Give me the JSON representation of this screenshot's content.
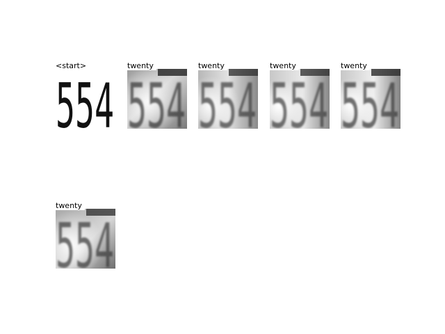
{
  "figure": {
    "panels": [
      {
        "label": "<start>",
        "digits": "554",
        "style": "stencil"
      },
      {
        "label": "twenty",
        "digits": "554",
        "style": "blurred"
      },
      {
        "label": "twenty",
        "digits": "554",
        "style": "blurred"
      },
      {
        "label": "twenty",
        "digits": "554",
        "style": "blurred"
      },
      {
        "label": "twenty",
        "digits": "554",
        "style": "blurred"
      },
      {
        "label": "twenty",
        "digits": "554",
        "style": "blurred"
      }
    ]
  }
}
